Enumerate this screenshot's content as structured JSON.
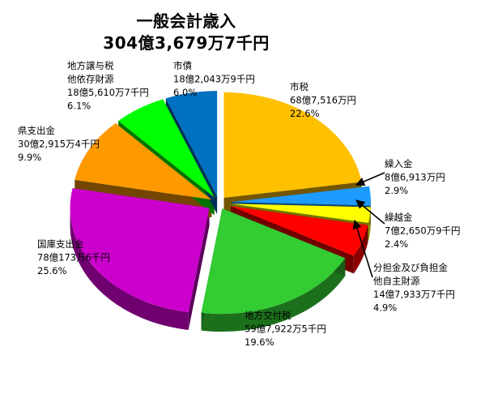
{
  "chart_data": {
    "type": "pie",
    "title": "一般会計歳入",
    "subtitle": "304億3,679万7千円",
    "slices": [
      {
        "name": "市税",
        "amount": "68億7,516万円",
        "percent_label": "22.6%",
        "value": 22.6,
        "color": "#FFC000"
      },
      {
        "name": "繰入金",
        "amount": "8億6,913万円",
        "percent_label": "2.9%",
        "value": 2.9,
        "color": "#1E9BFF"
      },
      {
        "name": "繰越金",
        "amount": "7億2,650万9千円",
        "percent_label": "2.4%",
        "value": 2.4,
        "color": "#FFFF00"
      },
      {
        "name": "分担金及び負担金\n他自主財源",
        "amount": "14億7,933万7千円",
        "percent_label": "4.9%",
        "value": 4.9,
        "color": "#FF0000"
      },
      {
        "name": "地方交付税",
        "amount": "59億7,922万5千円",
        "percent_label": "19.6%",
        "value": 19.6,
        "color": "#33CC33"
      },
      {
        "name": "国庫支出金",
        "amount": "78億173万6千円",
        "percent_label": "25.6%",
        "value": 25.6,
        "color": "#CC00CC"
      },
      {
        "name": "県支出金",
        "amount": "30億2,915万4千円",
        "percent_label": "9.9%",
        "value": 9.9,
        "color": "#FF9900"
      },
      {
        "name": "地方譲与税\n他依存財源",
        "amount": "18億5,610万7千円",
        "percent_label": "6.1%",
        "value": 6.1,
        "color": "#00FF00"
      },
      {
        "name": "市債",
        "amount": "18億2,043万9千円",
        "percent_label": "6.0%",
        "value": 6.0,
        "color": "#0070C0"
      }
    ]
  }
}
